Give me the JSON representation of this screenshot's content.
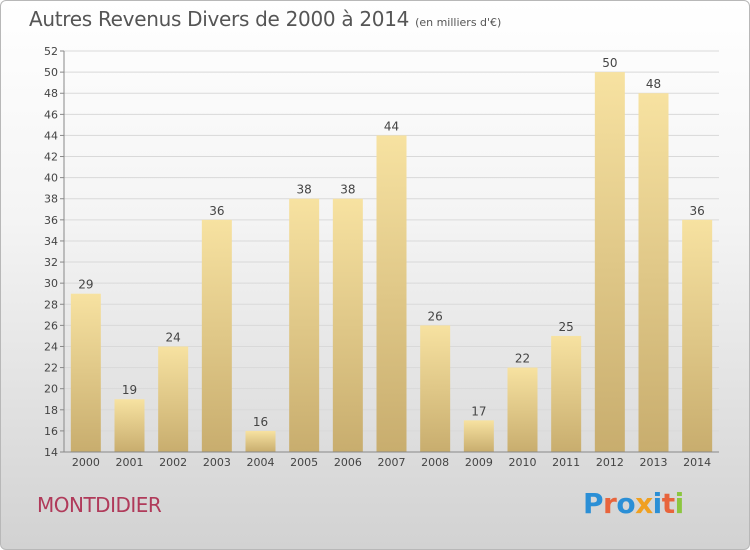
{
  "header": {
    "title": "Autres Revenus Divers de 2000 à 2014",
    "subtitle": "(en milliers d'€)"
  },
  "footer": {
    "place": "MONTDIDIER",
    "logo": "Proxiti"
  },
  "colors": {
    "bar_light": "#f7e2a1",
    "bar_dark": "#c8ad6e",
    "place_text": "#b03a5a",
    "logo_letters": [
      "#2b8fd6",
      "#e8643c",
      "#2b8fd6",
      "#f0a020",
      "#2b8fd6",
      "#e8643c",
      "#8cc63f"
    ]
  },
  "chart_data": {
    "type": "bar",
    "title": "Autres Revenus Divers de 2000 à 2014",
    "subtitle": "(en milliers d'€)",
    "categories": [
      "2000",
      "2001",
      "2002",
      "2003",
      "2004",
      "2005",
      "2006",
      "2007",
      "2008",
      "2009",
      "2010",
      "2011",
      "2012",
      "2013",
      "2014"
    ],
    "values": [
      29,
      19,
      24,
      36,
      16,
      38,
      38,
      44,
      26,
      17,
      22,
      25,
      50,
      48,
      36
    ],
    "ylim": [
      14,
      52
    ],
    "yticks": [
      14,
      16,
      18,
      20,
      22,
      24,
      26,
      28,
      30,
      32,
      34,
      36,
      38,
      40,
      42,
      44,
      46,
      48,
      50,
      52
    ],
    "grid": true,
    "data_labels": true
  }
}
